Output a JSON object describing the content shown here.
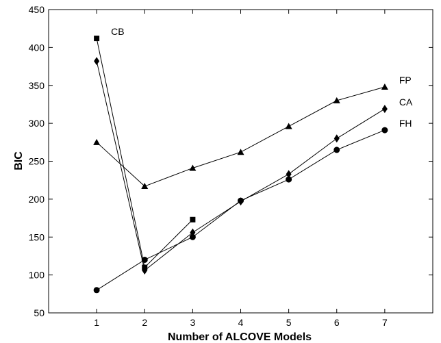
{
  "chart_data": {
    "type": "line",
    "title": "",
    "xlabel": "Number of ALCOVE Models",
    "ylabel": "BIC",
    "x_ticks": [
      1,
      2,
      3,
      4,
      5,
      6,
      7
    ],
    "y_ticks": [
      50,
      100,
      150,
      200,
      250,
      300,
      350,
      400,
      450
    ],
    "xlim": [
      0,
      8
    ],
    "ylim": [
      50,
      450
    ],
    "grid": false,
    "legend": "none",
    "series": [
      {
        "name": "CB",
        "marker": "square",
        "x": [
          1,
          2,
          3
        ],
        "y": [
          412,
          110,
          173
        ]
      },
      {
        "name": "FP",
        "marker": "triangle",
        "x": [
          1,
          2,
          3,
          4,
          5,
          6,
          7
        ],
        "y": [
          275,
          217,
          241,
          262,
          296,
          330,
          348
        ]
      },
      {
        "name": "CA",
        "marker": "diamond",
        "x": [
          1,
          2,
          3,
          4,
          5,
          6,
          7
        ],
        "y": [
          382,
          106,
          156,
          197,
          233,
          280,
          319
        ]
      },
      {
        "name": "FH",
        "marker": "circle",
        "x": [
          1,
          2,
          3,
          4,
          5,
          6,
          7
        ],
        "y": [
          80,
          120,
          150,
          198,
          226,
          265,
          291
        ]
      }
    ]
  }
}
